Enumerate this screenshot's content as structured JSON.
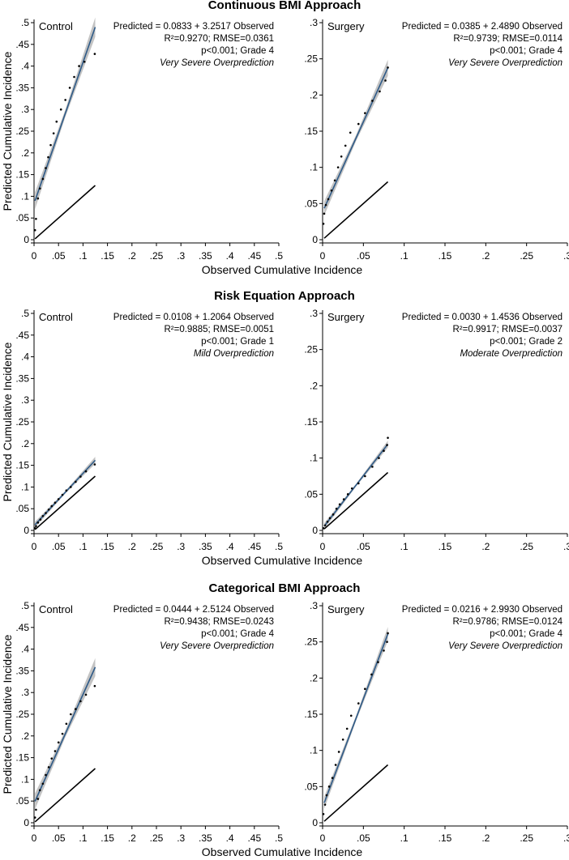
{
  "chart_data": [
    {
      "type": "scatter",
      "section_title": "Continuous BMI Approach",
      "ylabel": "Predicted Cumulative Incidence",
      "xlabel": "Observed Cumulative Incidence",
      "panels": [
        {
          "label": "Control",
          "ann": [
            "Predicted = 0.0833 + 3.2517 Observed",
            "R²=0.9270; RMSE=0.0361",
            "p<0.001; Grade 4",
            "Very Severe Overprediction"
          ],
          "ticks": [
            0,
            0.05,
            0.1,
            0.15,
            0.2,
            0.25,
            0.3,
            0.35,
            0.4,
            0.45,
            0.5
          ],
          "tick_labels": [
            "0",
            ".05",
            ".1",
            ".15",
            ".2",
            ".25",
            ".3",
            ".35",
            ".4",
            ".45",
            ".5"
          ],
          "xlim": [
            0,
            0.5
          ],
          "ylim": [
            0,
            0.5
          ],
          "intercept": 0.0833,
          "slope": 3.2517,
          "fit_x": [
            0.002,
            0.125
          ],
          "ci": 0.014,
          "ref_x": [
            0.002,
            0.125
          ],
          "points": [
            [
              0.002,
              0.022
            ],
            [
              0.004,
              0.048
            ],
            [
              0.008,
              0.095
            ],
            [
              0.012,
              0.118
            ],
            [
              0.018,
              0.14
            ],
            [
              0.024,
              0.165
            ],
            [
              0.029,
              0.19
            ],
            [
              0.034,
              0.218
            ],
            [
              0.04,
              0.245
            ],
            [
              0.046,
              0.272
            ],
            [
              0.055,
              0.3
            ],
            [
              0.064,
              0.322
            ],
            [
              0.073,
              0.35
            ],
            [
              0.082,
              0.375
            ],
            [
              0.092,
              0.4
            ],
            [
              0.103,
              0.41
            ],
            [
              0.124,
              0.428
            ]
          ]
        },
        {
          "label": "Surgery",
          "ann": [
            "Predicted = 0.0385 + 2.4890 Observed",
            "R²=0.9739; RMSE=0.0114",
            "p<0.001; Grade 4",
            "Very Severe Overprediction"
          ],
          "ticks": [
            0,
            0.05,
            0.1,
            0.15,
            0.2,
            0.25,
            0.3
          ],
          "tick_labels": [
            "0",
            ".05",
            ".1",
            ".15",
            ".2",
            ".25",
            ".3"
          ],
          "xlim": [
            0,
            0.3
          ],
          "ylim": [
            0,
            0.3
          ],
          "intercept": 0.0385,
          "slope": 2.489,
          "fit_x": [
            0.002,
            0.08
          ],
          "ci": 0.007,
          "ref_x": [
            0.002,
            0.08
          ],
          "points": [
            [
              0.001,
              0.022
            ],
            [
              0.002,
              0.036
            ],
            [
              0.004,
              0.048
            ],
            [
              0.007,
              0.056
            ],
            [
              0.011,
              0.068
            ],
            [
              0.015,
              0.082
            ],
            [
              0.019,
              0.1
            ],
            [
              0.023,
              0.115
            ],
            [
              0.028,
              0.13
            ],
            [
              0.034,
              0.148
            ],
            [
              0.044,
              0.16
            ],
            [
              0.052,
              0.175
            ],
            [
              0.061,
              0.192
            ],
            [
              0.07,
              0.205
            ],
            [
              0.077,
              0.22
            ],
            [
              0.08,
              0.238
            ]
          ]
        }
      ]
    },
    {
      "type": "scatter",
      "section_title": "Risk Equation Approach",
      "ylabel": "Predicted Cumulative Incidence",
      "xlabel": "Observed Cumulative Incidence",
      "panels": [
        {
          "label": "Control",
          "ann": [
            "Predicted = 0.0108 + 1.2064 Observed",
            "R²=0.9885; RMSE=0.0051",
            "p<0.001; Grade 1",
            "Mild Overprediction"
          ],
          "ticks": [
            0,
            0.05,
            0.1,
            0.15,
            0.2,
            0.25,
            0.3,
            0.35,
            0.4,
            0.45,
            0.5
          ],
          "tick_labels": [
            "0",
            ".05",
            ".1",
            ".15",
            ".2",
            ".25",
            ".3",
            ".35",
            ".4",
            ".45",
            ".5"
          ],
          "xlim": [
            0,
            0.5
          ],
          "ylim": [
            0,
            0.5
          ],
          "intercept": 0.0108,
          "slope": 1.2064,
          "fit_x": [
            0.002,
            0.125
          ],
          "ci": 0.005,
          "ref_x": [
            0.002,
            0.125
          ],
          "points": [
            [
              0.002,
              0.005
            ],
            [
              0.004,
              0.01
            ],
            [
              0.008,
              0.018
            ],
            [
              0.013,
              0.025
            ],
            [
              0.018,
              0.033
            ],
            [
              0.024,
              0.04
            ],
            [
              0.03,
              0.048
            ],
            [
              0.036,
              0.056
            ],
            [
              0.043,
              0.064
            ],
            [
              0.05,
              0.072
            ],
            [
              0.058,
              0.082
            ],
            [
              0.066,
              0.092
            ],
            [
              0.075,
              0.1
            ],
            [
              0.085,
              0.112
            ],
            [
              0.095,
              0.124
            ],
            [
              0.106,
              0.136
            ],
            [
              0.124,
              0.152
            ]
          ]
        },
        {
          "label": "Surgery",
          "ann": [
            "Predicted = 0.0030 + 1.4536 Observed",
            "R²=0.9917; RMSE=0.0037",
            "p<0.001; Grade 2",
            "Moderate Overprediction"
          ],
          "ticks": [
            0,
            0.05,
            0.1,
            0.15,
            0.2,
            0.25,
            0.3
          ],
          "tick_labels": [
            "0",
            ".05",
            ".1",
            ".15",
            ".2",
            ".25",
            ".3"
          ],
          "xlim": [
            0,
            0.3
          ],
          "ylim": [
            0,
            0.3
          ],
          "intercept": 0.003,
          "slope": 1.4536,
          "fit_x": [
            0.002,
            0.08
          ],
          "ci": 0.003,
          "ref_x": [
            0.002,
            0.08
          ],
          "points": [
            [
              0.001,
              0.003
            ],
            [
              0.003,
              0.007
            ],
            [
              0.006,
              0.012
            ],
            [
              0.009,
              0.017
            ],
            [
              0.013,
              0.022
            ],
            [
              0.017,
              0.03
            ],
            [
              0.021,
              0.036
            ],
            [
              0.026,
              0.043
            ],
            [
              0.031,
              0.05
            ],
            [
              0.036,
              0.058
            ],
            [
              0.044,
              0.065
            ],
            [
              0.052,
              0.075
            ],
            [
              0.061,
              0.088
            ],
            [
              0.069,
              0.1
            ],
            [
              0.075,
              0.11
            ],
            [
              0.079,
              0.118
            ],
            [
              0.08,
              0.128
            ]
          ]
        }
      ]
    },
    {
      "type": "scatter",
      "section_title": "Categorical BMI Approach",
      "ylabel": "Predicted Cumulative Incidence",
      "xlabel": "Observed Cumulative Incidence",
      "panels": [
        {
          "label": "Control",
          "ann": [
            "Predicted = 0.0444 + 2.5124 Observed",
            "R²=0.9438; RMSE=0.0243",
            "p<0.001; Grade 4",
            "Very Severe Overprediction"
          ],
          "ticks": [
            0,
            0.05,
            0.1,
            0.15,
            0.2,
            0.25,
            0.3,
            0.35,
            0.4,
            0.45,
            0.5
          ],
          "tick_labels": [
            "0",
            ".05",
            ".1",
            ".15",
            ".2",
            ".25",
            ".3",
            ".35",
            ".4",
            ".45",
            ".5"
          ],
          "xlim": [
            0,
            0.5
          ],
          "ylim": [
            0,
            0.5
          ],
          "intercept": 0.0444,
          "slope": 2.5124,
          "fit_x": [
            0.002,
            0.125
          ],
          "ci": 0.013,
          "ref_x": [
            0.002,
            0.125
          ],
          "points": [
            [
              0.002,
              0.012
            ],
            [
              0.004,
              0.03
            ],
            [
              0.008,
              0.055
            ],
            [
              0.012,
              0.075
            ],
            [
              0.018,
              0.09
            ],
            [
              0.024,
              0.11
            ],
            [
              0.03,
              0.128
            ],
            [
              0.036,
              0.148
            ],
            [
              0.043,
              0.165
            ],
            [
              0.05,
              0.185
            ],
            [
              0.058,
              0.205
            ],
            [
              0.066,
              0.228
            ],
            [
              0.075,
              0.25
            ],
            [
              0.085,
              0.262
            ],
            [
              0.095,
              0.28
            ],
            [
              0.106,
              0.295
            ],
            [
              0.124,
              0.315
            ]
          ]
        },
        {
          "label": "Surgery",
          "ann": [
            "Predicted = 0.0216 + 2.9930 Observed",
            "R²=0.9786; RMSE=0.0124",
            "p<0.001; Grade 4",
            "Very Severe Overprediction"
          ],
          "ticks": [
            0,
            0.05,
            0.1,
            0.15,
            0.2,
            0.25,
            0.3
          ],
          "tick_labels": [
            "0",
            ".05",
            ".1",
            ".15",
            ".2",
            ".25",
            ".3"
          ],
          "xlim": [
            0,
            0.3
          ],
          "ylim": [
            0,
            0.3
          ],
          "intercept": 0.0216,
          "slope": 2.993,
          "fit_x": [
            0.002,
            0.08
          ],
          "ci": 0.006,
          "ref_x": [
            0.002,
            0.08
          ],
          "points": [
            [
              0.001,
              0.012
            ],
            [
              0.003,
              0.025
            ],
            [
              0.005,
              0.038
            ],
            [
              0.008,
              0.05
            ],
            [
              0.012,
              0.062
            ],
            [
              0.016,
              0.08
            ],
            [
              0.02,
              0.098
            ],
            [
              0.025,
              0.115
            ],
            [
              0.03,
              0.13
            ],
            [
              0.035,
              0.148
            ],
            [
              0.044,
              0.165
            ],
            [
              0.052,
              0.185
            ],
            [
              0.06,
              0.205
            ],
            [
              0.068,
              0.222
            ],
            [
              0.075,
              0.238
            ],
            [
              0.079,
              0.25
            ],
            [
              0.08,
              0.262
            ]
          ]
        }
      ]
    }
  ],
  "colors": {
    "fit_line": "#2e5a87",
    "ci_band": "#b8b8b8",
    "reference_line": "#000000",
    "points": "#000000"
  }
}
